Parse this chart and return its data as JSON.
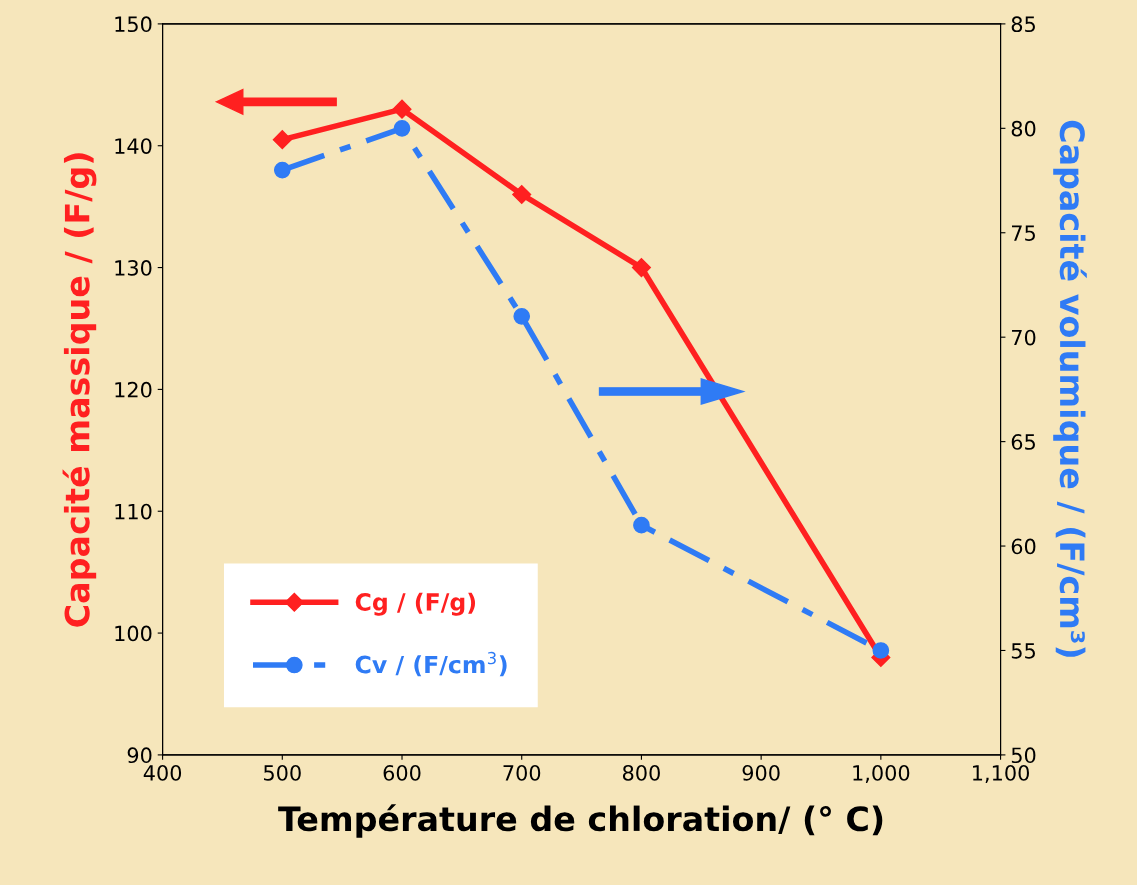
{
  "chart_data": {
    "type": "line",
    "xlabel": "Température de chloration/ (° C)",
    "ylabel": "Capacité massique / (F/g)",
    "y2label": "Capacité volumique / (F/cm³)",
    "x": [
      500,
      600,
      700,
      800,
      1000
    ],
    "series": [
      {
        "name": "Cg / (F/g)",
        "color": "#ff2020",
        "values": [
          140.5,
          143,
          136,
          130,
          98
        ],
        "marker": "diamond",
        "line_style": "solid"
      },
      {
        "name": "Cv / (F/cm$^{3}$)",
        "color": "#2f7bf5",
        "values": [
          78,
          80,
          71,
          61,
          55
        ],
        "marker": "circle",
        "line_style": "dashdot",
        "axis": "y2"
      }
    ],
    "xlim": [
      400,
      1100
    ],
    "xticks": [
      400,
      500,
      600,
      700,
      800,
      900,
      {
        "value": 1000,
        "label": "1,000"
      },
      {
        "value": 1100,
        "label": "1,100"
      }
    ],
    "ylim": [
      90,
      150
    ],
    "yticks": [
      90,
      100,
      110,
      120,
      130,
      140,
      150
    ],
    "y2lim": [
      50,
      85
    ],
    "y2ticks": [
      50,
      55,
      60,
      65,
      70,
      75,
      80,
      85
    ],
    "grid": false,
    "legend": "bottom left"
  }
}
